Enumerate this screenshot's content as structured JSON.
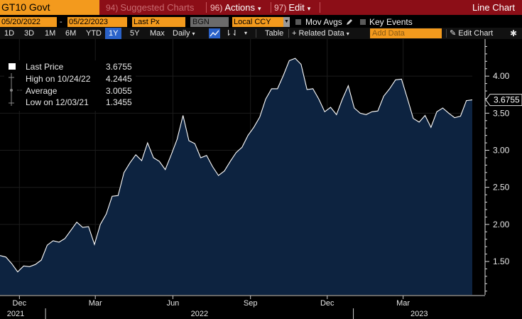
{
  "toolbar": {
    "ticker": "GT10 Govt",
    "menu": [
      {
        "num": "94)",
        "label": "Suggested Charts",
        "dim": true
      },
      {
        "num": "96)",
        "label": "Actions",
        "dim": false
      },
      {
        "num": "97)",
        "label": "Edit",
        "dim": false
      }
    ],
    "chart_type": "Line Chart"
  },
  "range_bar": {
    "start_date": "05/20/2022",
    "end_date": "05/22/2023",
    "field": "Last Px",
    "source": "BGN",
    "currency": "Local CCY",
    "mov_avgs": "Mov Avgs",
    "key_events": "Key Events"
  },
  "period_bar": {
    "periods": [
      "1D",
      "3D",
      "1M",
      "6M",
      "YTD",
      "1Y",
      "5Y",
      "Max"
    ],
    "selected": "1Y",
    "frequency": "Daily",
    "table": "Table",
    "related_data": "+ Related Data",
    "add_data_placeholder": "Add Data",
    "edit_chart": "Edit Chart"
  },
  "legend": {
    "rows": [
      {
        "label": "Last Price",
        "value": "3.6755"
      },
      {
        "label": "High on 10/24/22",
        "value": "4.2445"
      },
      {
        "label": "Average",
        "value": "3.0055"
      },
      {
        "label": "Low on 12/03/21",
        "value": "1.3455"
      }
    ]
  },
  "colors": {
    "line": "#ffffff",
    "area": "#0d2340",
    "toolbar": "#8c0e17",
    "accent": "#f39a1d",
    "selected": "#2a62c9"
  },
  "chart_data": {
    "type": "area",
    "series": [
      {
        "name": "Last Price",
        "x": [
          "2021-11-08",
          "2021-11-15",
          "2021-11-22",
          "2021-11-29",
          "2021-12-06",
          "2021-12-13",
          "2021-12-20",
          "2021-12-27",
          "2022-01-03",
          "2022-01-10",
          "2022-01-17",
          "2022-01-24",
          "2022-01-31",
          "2022-02-07",
          "2022-02-14",
          "2022-02-21",
          "2022-02-28",
          "2022-03-07",
          "2022-03-14",
          "2022-03-21",
          "2022-03-28",
          "2022-04-04",
          "2022-04-11",
          "2022-04-18",
          "2022-04-25",
          "2022-05-02",
          "2022-05-09",
          "2022-05-16",
          "2022-05-23",
          "2022-05-30",
          "2022-06-06",
          "2022-06-13",
          "2022-06-20",
          "2022-06-27",
          "2022-07-04",
          "2022-07-11",
          "2022-07-18",
          "2022-07-25",
          "2022-08-01",
          "2022-08-08",
          "2022-08-15",
          "2022-08-22",
          "2022-08-29",
          "2022-09-05",
          "2022-09-12",
          "2022-09-19",
          "2022-09-26",
          "2022-10-03",
          "2022-10-10",
          "2022-10-17",
          "2022-10-24",
          "2022-10-31",
          "2022-11-07",
          "2022-11-14",
          "2022-11-21",
          "2022-11-28",
          "2022-12-05",
          "2022-12-12",
          "2022-12-19",
          "2022-12-26",
          "2023-01-02",
          "2023-01-09",
          "2023-01-16",
          "2023-01-23",
          "2023-01-30",
          "2023-02-06",
          "2023-02-13",
          "2023-02-20",
          "2023-02-27",
          "2023-03-06",
          "2023-03-13",
          "2023-03-20",
          "2023-03-27",
          "2023-04-03",
          "2023-04-10",
          "2023-04-17",
          "2023-04-24",
          "2023-05-01",
          "2023-05-08",
          "2023-05-15",
          "2023-05-22"
        ],
        "values": [
          1.58,
          1.56,
          1.47,
          1.36,
          1.44,
          1.43,
          1.46,
          1.52,
          1.72,
          1.78,
          1.76,
          1.81,
          1.92,
          2.03,
          1.96,
          1.97,
          1.73,
          2.0,
          2.14,
          2.38,
          2.39,
          2.7,
          2.83,
          2.94,
          2.86,
          3.1,
          2.9,
          2.85,
          2.74,
          2.94,
          3.15,
          3.47,
          3.13,
          3.09,
          2.9,
          2.93,
          2.78,
          2.66,
          2.72,
          2.85,
          2.97,
          3.04,
          3.2,
          3.31,
          3.45,
          3.69,
          3.83,
          3.83,
          4.01,
          4.21,
          4.24,
          4.16,
          3.82,
          3.83,
          3.69,
          3.52,
          3.58,
          3.48,
          3.69,
          3.87,
          3.57,
          3.5,
          3.48,
          3.52,
          3.53,
          3.73,
          3.83,
          3.95,
          3.96,
          3.7,
          3.43,
          3.38,
          3.47,
          3.31,
          3.52,
          3.57,
          3.5,
          3.44,
          3.46,
          3.67,
          3.68
        ]
      }
    ],
    "x_ticks": [
      "Dec",
      "Mar",
      "Jun",
      "Sep",
      "Dec",
      "Mar"
    ],
    "x_years": [
      "2021",
      "2022",
      "2023"
    ],
    "y_ticks": [
      "1.50",
      "2.00",
      "2.50",
      "3.00",
      "3.50",
      "4.00"
    ],
    "ylim": [
      1.05,
      4.5
    ],
    "last_value_label": "3.6755",
    "legend_position": "top-left",
    "grid": true
  }
}
